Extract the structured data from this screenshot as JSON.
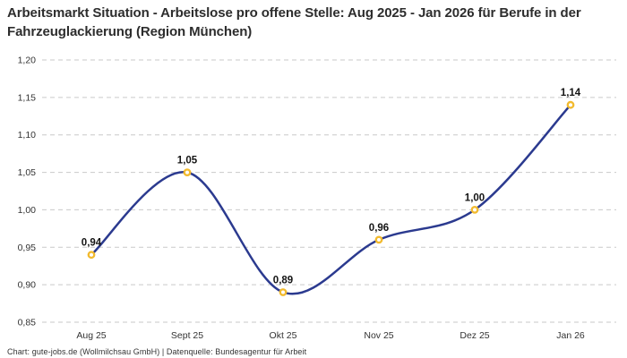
{
  "title": "Arbeitsmarkt Situation - Arbeitslose pro offene Stelle: Aug 2025 - Jan 2026 für Berufe in der Fahrzeuglackierung (Region München)",
  "footer": "Chart: gute-jobs.de (Wollmilchsau GmbH) | Datenquelle: Bundesagentur für Arbeit",
  "chart_data": {
    "type": "line",
    "title": "Arbeitsmarkt Situation - Arbeitslose pro offene Stelle: Aug 2025 - Jan 2026 für Berufe in der Fahrzeuglackierung (Region München)",
    "categories": [
      "Aug 25",
      "Sept 25",
      "Okt 25",
      "Nov 25",
      "Dez 25",
      "Jan 26"
    ],
    "values": [
      0.94,
      1.05,
      0.89,
      0.96,
      1.0,
      1.14
    ],
    "value_labels": [
      "0,94",
      "1,05",
      "0,89",
      "0,96",
      "1,00",
      "1,14"
    ],
    "xlabel": "",
    "ylabel": "",
    "ylim": [
      0.85,
      1.2
    ],
    "yticks": [
      1.2,
      1.15,
      1.1,
      1.05,
      1.0,
      0.95,
      0.9,
      0.85
    ],
    "ytick_labels": [
      "1,20",
      "1,15",
      "1,10",
      "1,05",
      "1,00",
      "0,95",
      "0,90",
      "0,85"
    ],
    "grid": "horizontal-dashed",
    "legend": "none",
    "line_color": "#2b3a8f",
    "marker_color": "#f2ba2e",
    "marker_fill": "#ffffff",
    "grid_color": "#c9c9c9"
  }
}
